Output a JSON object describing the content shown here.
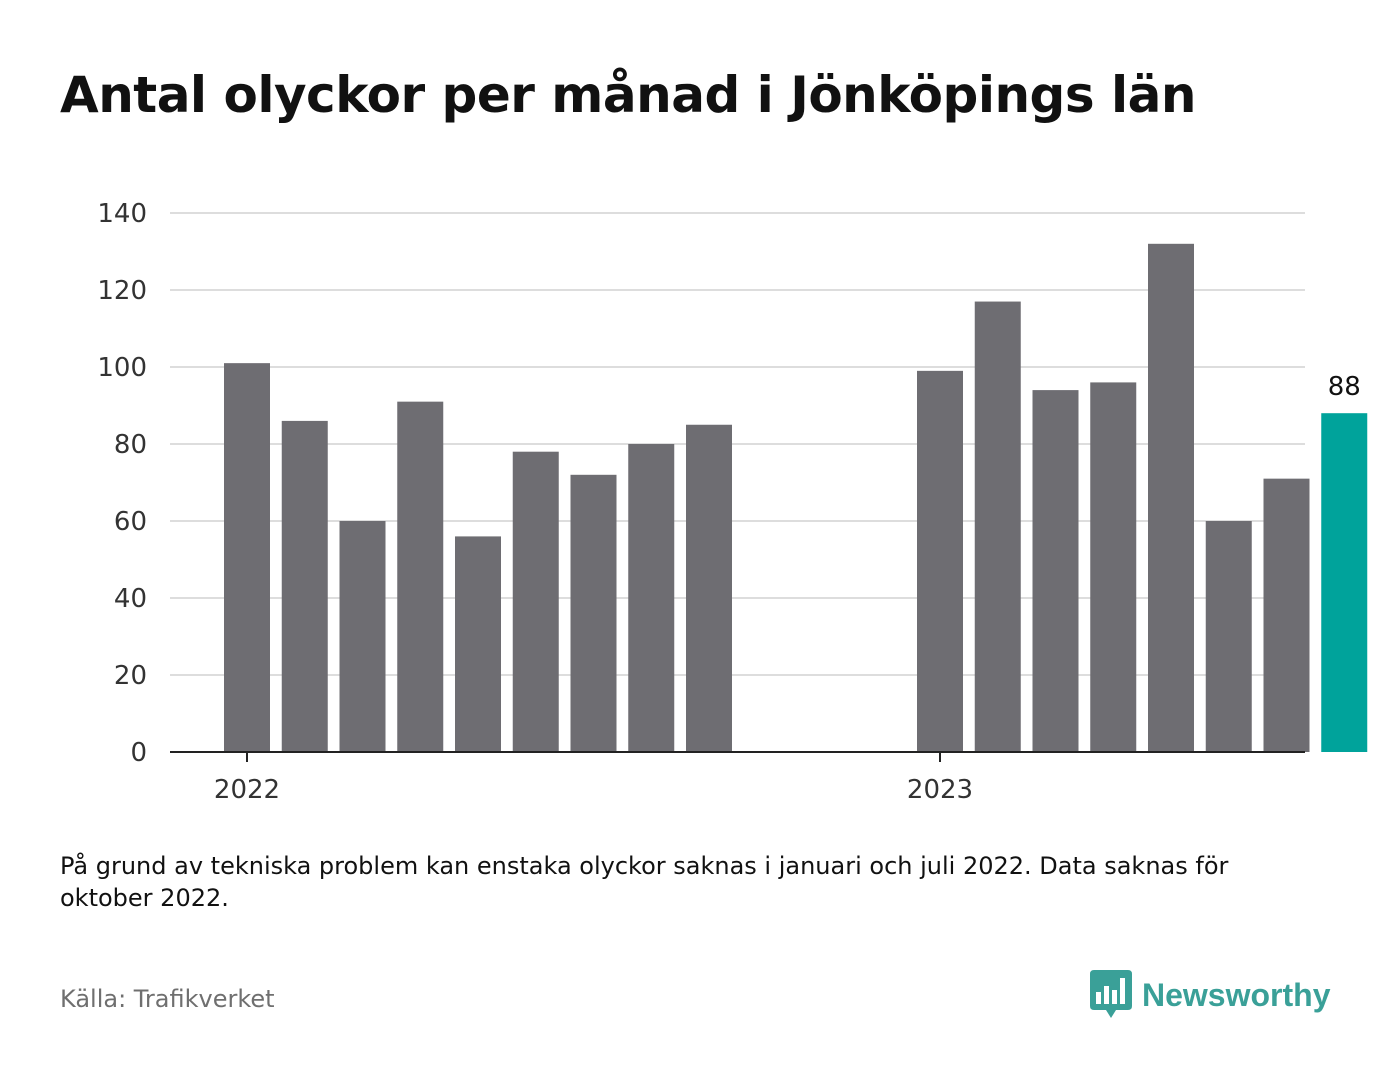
{
  "title": "Antal olyckor per månad i Jönköpings län",
  "note": "På grund av tekniska problem kan enstaka olyckor saknas i januari och juli 2022. Data saknas för oktober 2022.",
  "source": "Källa: Trafikverket",
  "brand": {
    "name": "Newsworthy",
    "icon": "newsworthy-logo-icon",
    "color": "#3aa098"
  },
  "colors": {
    "bar": "#6e6d72",
    "highlight": "#00a39b",
    "grid": "#dddddd",
    "axis": "#222222"
  },
  "chart_data": {
    "type": "bar",
    "title": "Antal olyckor per månad i Jönköpings län",
    "xlabel": "",
    "ylabel": "",
    "ylim": [
      0,
      140
    ],
    "yticks": [
      0,
      20,
      40,
      60,
      80,
      100,
      120,
      140
    ],
    "xtick_labels": [
      {
        "label": "2022",
        "month": "2022-01"
      },
      {
        "label": "2023",
        "month": "2023-01"
      }
    ],
    "grid": true,
    "legend": "none",
    "months": [
      "2022-01",
      "2022-02",
      "2022-03",
      "2022-04",
      "2022-05",
      "2022-06",
      "2022-07",
      "2022-08",
      "2022-09",
      "2022-10",
      "2022-11",
      "2022-12",
      "2023-01",
      "2023-02",
      "2023-03",
      "2023-04",
      "2023-05",
      "2023-06",
      "2023-07",
      "2023-08"
    ],
    "values": [
      101,
      86,
      60,
      91,
      56,
      78,
      72,
      80,
      85,
      null,
      null,
      null,
      99,
      117,
      94,
      96,
      132,
      60,
      71,
      88
    ],
    "highlight_index": 19,
    "data_labels": [
      {
        "index": 19,
        "text": "88"
      }
    ]
  }
}
